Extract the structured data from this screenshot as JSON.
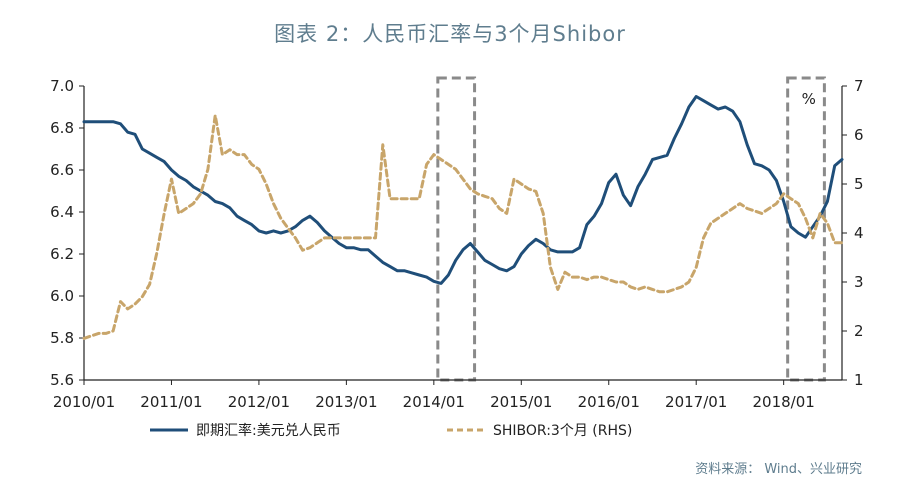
{
  "chart_data": {
    "type": "line",
    "title": "图表 2：人民币汇率与3个月Shibor",
    "source": "资料来源： Wind、兴业研究",
    "x_axis": {
      "range": [
        2010.0,
        2018.667
      ],
      "tick_positions": [
        2010,
        2011,
        2012,
        2013,
        2014,
        2015,
        2016,
        2017,
        2018
      ],
      "tick_labels": [
        "2010/01",
        "2011/01",
        "2012/01",
        "2013/01",
        "2014/01",
        "2015/01",
        "2016/01",
        "2017/01",
        "2018/01"
      ]
    },
    "y_left": {
      "range": [
        5.6,
        7.0
      ],
      "ticks": [
        5.6,
        5.8,
        6.0,
        6.2,
        6.4,
        6.6,
        6.8,
        7.0
      ],
      "tick_labels": [
        "5.6",
        "5.8",
        "6.0",
        "6.2",
        "6.4",
        "6.6",
        "6.8",
        "7.0"
      ]
    },
    "y_right": {
      "range": [
        1,
        7
      ],
      "ticks": [
        1,
        2,
        3,
        4,
        5,
        6,
        7
      ],
      "tick_labels": [
        "1",
        "2",
        "3",
        "4",
        "5",
        "6",
        "7"
      ],
      "unit_label": "%"
    },
    "highlight_periods": [
      [
        2014.0,
        2014.42
      ],
      [
        2018.0,
        2018.42
      ]
    ],
    "series": [
      {
        "name": "即期汇率:美元兑人民币",
        "axis": "left",
        "color": "#1f4e79",
        "x": [
          2010.0,
          2010.083,
          2010.167,
          2010.25,
          2010.333,
          2010.417,
          2010.5,
          2010.583,
          2010.667,
          2010.75,
          2010.833,
          2010.917,
          2011.0,
          2011.083,
          2011.167,
          2011.25,
          2011.333,
          2011.417,
          2011.5,
          2011.583,
          2011.667,
          2011.75,
          2011.833,
          2011.917,
          2012.0,
          2012.083,
          2012.167,
          2012.25,
          2012.333,
          2012.417,
          2012.5,
          2012.583,
          2012.667,
          2012.75,
          2012.833,
          2012.917,
          2013.0,
          2013.083,
          2013.167,
          2013.25,
          2013.333,
          2013.417,
          2013.5,
          2013.583,
          2013.667,
          2013.75,
          2013.833,
          2013.917,
          2014.0,
          2014.083,
          2014.167,
          2014.25,
          2014.333,
          2014.417,
          2014.5,
          2014.583,
          2014.667,
          2014.75,
          2014.833,
          2014.917,
          2015.0,
          2015.083,
          2015.167,
          2015.25,
          2015.333,
          2015.417,
          2015.5,
          2015.583,
          2015.667,
          2015.75,
          2015.833,
          2015.917,
          2016.0,
          2016.083,
          2016.167,
          2016.25,
          2016.333,
          2016.417,
          2016.5,
          2016.583,
          2016.667,
          2016.75,
          2016.833,
          2016.917,
          2017.0,
          2017.083,
          2017.167,
          2017.25,
          2017.333,
          2017.417,
          2017.5,
          2017.583,
          2017.667,
          2017.75,
          2017.833,
          2017.917,
          2018.0,
          2018.083,
          2018.167,
          2018.25,
          2018.333,
          2018.417,
          2018.5,
          2018.583,
          2018.667
        ],
        "values": [
          6.83,
          6.83,
          6.83,
          6.83,
          6.83,
          6.82,
          6.78,
          6.77,
          6.7,
          6.68,
          6.66,
          6.64,
          6.6,
          6.57,
          6.55,
          6.52,
          6.5,
          6.48,
          6.45,
          6.44,
          6.42,
          6.38,
          6.36,
          6.34,
          6.31,
          6.3,
          6.31,
          6.3,
          6.31,
          6.33,
          6.36,
          6.38,
          6.35,
          6.31,
          6.28,
          6.25,
          6.23,
          6.23,
          6.22,
          6.22,
          6.19,
          6.16,
          6.14,
          6.12,
          6.12,
          6.11,
          6.1,
          6.09,
          6.07,
          6.06,
          6.1,
          6.17,
          6.22,
          6.25,
          6.21,
          6.17,
          6.15,
          6.13,
          6.12,
          6.14,
          6.2,
          6.24,
          6.27,
          6.25,
          6.22,
          6.21,
          6.21,
          6.21,
          6.23,
          6.34,
          6.38,
          6.44,
          6.54,
          6.58,
          6.48,
          6.43,
          6.52,
          6.58,
          6.65,
          6.66,
          6.67,
          6.75,
          6.82,
          6.9,
          6.95,
          6.93,
          6.91,
          6.89,
          6.9,
          6.88,
          6.83,
          6.72,
          6.63,
          6.62,
          6.6,
          6.55,
          6.45,
          6.33,
          6.3,
          6.28,
          6.33,
          6.38,
          6.45,
          6.62,
          6.65
        ]
      },
      {
        "name": "SHIBOR:3个月 (RHS)",
        "axis": "right",
        "color": "#c8a56a",
        "x": [
          2010.0,
          2010.083,
          2010.167,
          2010.25,
          2010.333,
          2010.417,
          2010.5,
          2010.583,
          2010.667,
          2010.75,
          2010.833,
          2010.917,
          2011.0,
          2011.083,
          2011.167,
          2011.25,
          2011.333,
          2011.417,
          2011.5,
          2011.583,
          2011.667,
          2011.75,
          2011.833,
          2011.917,
          2012.0,
          2012.083,
          2012.167,
          2012.25,
          2012.333,
          2012.417,
          2012.5,
          2012.583,
          2012.667,
          2012.75,
          2012.833,
          2012.917,
          2013.0,
          2013.083,
          2013.167,
          2013.25,
          2013.333,
          2013.417,
          2013.5,
          2013.583,
          2013.667,
          2013.75,
          2013.833,
          2013.917,
          2014.0,
          2014.083,
          2014.167,
          2014.25,
          2014.333,
          2014.417,
          2014.5,
          2014.583,
          2014.667,
          2014.75,
          2014.833,
          2014.917,
          2015.0,
          2015.083,
          2015.167,
          2015.25,
          2015.333,
          2015.417,
          2015.5,
          2015.583,
          2015.667,
          2015.75,
          2015.833,
          2015.917,
          2016.0,
          2016.083,
          2016.167,
          2016.25,
          2016.333,
          2016.417,
          2016.5,
          2016.583,
          2016.667,
          2016.75,
          2016.833,
          2016.917,
          2017.0,
          2017.083,
          2017.167,
          2017.25,
          2017.333,
          2017.417,
          2017.5,
          2017.583,
          2017.667,
          2017.75,
          2017.833,
          2017.917,
          2018.0,
          2018.083,
          2018.167,
          2018.25,
          2018.333,
          2018.417,
          2018.5,
          2018.583,
          2018.667
        ],
        "values": [
          1.85,
          1.9,
          1.95,
          1.95,
          2.0,
          2.6,
          2.45,
          2.55,
          2.7,
          2.95,
          3.6,
          4.4,
          5.1,
          4.4,
          4.5,
          4.6,
          4.8,
          5.3,
          6.4,
          5.6,
          5.7,
          5.6,
          5.6,
          5.4,
          5.3,
          5.0,
          4.6,
          4.3,
          4.1,
          3.9,
          3.65,
          3.7,
          3.8,
          3.9,
          3.9,
          3.9,
          3.9,
          3.9,
          3.9,
          3.9,
          3.9,
          5.8,
          4.7,
          4.7,
          4.7,
          4.7,
          4.7,
          5.4,
          5.6,
          5.5,
          5.4,
          5.3,
          5.1,
          4.9,
          4.8,
          4.75,
          4.7,
          4.5,
          4.4,
          5.1,
          5.0,
          4.9,
          4.85,
          4.4,
          3.3,
          2.85,
          3.2,
          3.1,
          3.1,
          3.05,
          3.1,
          3.1,
          3.05,
          3.0,
          3.0,
          2.9,
          2.85,
          2.9,
          2.85,
          2.8,
          2.8,
          2.85,
          2.9,
          3.0,
          3.3,
          3.9,
          4.2,
          4.3,
          4.4,
          4.5,
          4.6,
          4.5,
          4.45,
          4.4,
          4.5,
          4.6,
          4.8,
          4.7,
          4.6,
          4.3,
          3.9,
          4.4,
          4.2,
          3.8,
          3.8
        ]
      }
    ],
    "legend": {
      "position": "bottom",
      "entries": [
        "即期汇率:美元兑人民币",
        "SHIBOR:3个月 (RHS)"
      ]
    }
  }
}
